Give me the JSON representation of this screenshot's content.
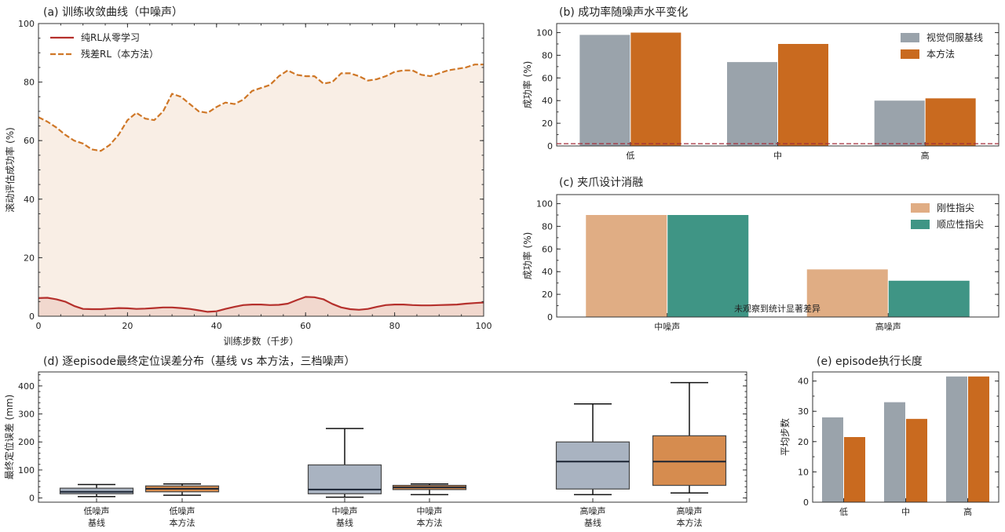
{
  "chart_data": [
    {
      "id": "a",
      "type": "line",
      "title": "(a) 训练收敛曲线（中噪声）",
      "xlabel": "训练步数（千步）",
      "ylabel": "滚动评估成功率 (%)",
      "xlim": [
        0,
        100
      ],
      "ylim": [
        0,
        100
      ],
      "xticks": [
        "0",
        "20",
        "40",
        "60",
        "80",
        "100"
      ],
      "yticks": [
        "0",
        "20",
        "40",
        "60",
        "80",
        "100"
      ],
      "legend_position": "top-left",
      "series": [
        {
          "name": "纯RL从零学习",
          "color": "#b5302c",
          "style": "solid",
          "x": [
            0,
            2,
            4,
            6,
            8,
            10,
            12,
            14,
            16,
            18,
            20,
            22,
            24,
            26,
            28,
            30,
            32,
            34,
            36,
            38,
            40,
            42,
            44,
            46,
            48,
            50,
            52,
            54,
            56,
            58,
            60,
            62,
            64,
            66,
            68,
            70,
            72,
            74,
            76,
            78,
            80,
            82,
            84,
            86,
            88,
            90,
            92,
            94,
            96,
            98,
            100
          ],
          "y": [
            6.2,
            6.3,
            5.8,
            5,
            3.5,
            2.5,
            2.4,
            2.4,
            2.6,
            2.8,
            2.7,
            2.5,
            2.6,
            2.8,
            3,
            3,
            2.8,
            2.5,
            2,
            1.5,
            1.7,
            2.5,
            3.2,
            3.8,
            4,
            4,
            3.8,
            3.9,
            4.3,
            5.5,
            6.6,
            6.5,
            5.8,
            4.2,
            3,
            2.4,
            2.2,
            2.5,
            3.2,
            3.8,
            4,
            4,
            3.8,
            3.7,
            3.7,
            3.8,
            3.9,
            4.0,
            4.3,
            4.5,
            4.7
          ]
        },
        {
          "name": "残差RL（本方法）",
          "color": "#cf7727",
          "style": "dashed",
          "x": [
            0,
            2,
            4,
            6,
            8,
            10,
            12,
            14,
            16,
            18,
            20,
            22,
            24,
            26,
            28,
            30,
            32,
            34,
            36,
            38,
            40,
            42,
            44,
            46,
            48,
            50,
            52,
            54,
            56,
            58,
            60,
            62,
            64,
            66,
            68,
            70,
            72,
            74,
            76,
            78,
            80,
            82,
            84,
            86,
            88,
            90,
            92,
            94,
            96,
            98,
            100
          ],
          "y": [
            68,
            66.5,
            64.5,
            62,
            60,
            59,
            57,
            56.5,
            58.5,
            62,
            67,
            69.5,
            67.5,
            67,
            70,
            76,
            75,
            72.5,
            70,
            69.5,
            71.5,
            73,
            72.5,
            74,
            77,
            78,
            79,
            82,
            84,
            82.5,
            82,
            82,
            79.5,
            80,
            83,
            83,
            82,
            80.5,
            81,
            82,
            83.5,
            84,
            84,
            82.5,
            82,
            83,
            84,
            84.5,
            85,
            86,
            86
          ]
        }
      ]
    },
    {
      "id": "b",
      "type": "bar",
      "title": "(b) 成功率随噪声水平变化",
      "ylabel": "成功率 (%)",
      "categories": [
        "低",
        "中",
        "高"
      ],
      "ylim": [
        0,
        108
      ],
      "yticks": [
        "0",
        "20",
        "40",
        "60",
        "80",
        "100"
      ],
      "reference_line": 2,
      "legend_position": "top-right",
      "series": [
        {
          "name": "视觉伺服基线",
          "color": "#9aa3ab",
          "values": [
            98,
            74,
            40
          ]
        },
        {
          "name": "本方法",
          "color": "#c96a1f",
          "values": [
            100,
            90,
            42
          ]
        }
      ]
    },
    {
      "id": "c",
      "type": "bar",
      "title": "(c) 夹爪设计消融",
      "ylabel": "成功率 (%)",
      "categories": [
        "中噪声",
        "高噪声"
      ],
      "ylim": [
        0,
        108
      ],
      "yticks": [
        "0",
        "20",
        "40",
        "60",
        "80",
        "100"
      ],
      "legend_position": "top-right",
      "annotation": "未观察到统计显著差异",
      "series": [
        {
          "name": "刚性指尖",
          "color": "#e0ad84",
          "values": [
            90,
            42
          ]
        },
        {
          "name": "顺应性指尖",
          "color": "#3f9585",
          "values": [
            90,
            32
          ]
        }
      ]
    },
    {
      "id": "d",
      "type": "box",
      "title": "(d) 逐episode最终定位误差分布（基线 vs 本方法，三档噪声）",
      "ylabel": "最终定位误差 (mm)",
      "ylim": [
        -15,
        450
      ],
      "yticks": [
        "0",
        "100",
        "200",
        "300",
        "400"
      ],
      "boxes": [
        {
          "label": [
            "低噪声",
            "基线"
          ],
          "color": "#a9b3c1",
          "whislo": 5,
          "q1": 15,
          "med": 22,
          "q3": 35,
          "whishi": 48
        },
        {
          "label": [
            "低噪声",
            "本方法"
          ],
          "color": "#d68c4f",
          "whislo": 10,
          "q1": 22,
          "med": 33,
          "q3": 43,
          "whishi": 50
        },
        {
          "label": [
            "中噪声",
            "基线"
          ],
          "color": "#a9b3c1",
          "whislo": 3,
          "q1": 15,
          "med": 30,
          "q3": 118,
          "whishi": 248
        },
        {
          "label": [
            "中噪声",
            "本方法"
          ],
          "color": "#d68c4f",
          "whislo": 12,
          "q1": 30,
          "med": 38,
          "q3": 45,
          "whishi": 50
        },
        {
          "label": [
            "高噪声",
            "基线"
          ],
          "color": "#a9b3c1",
          "whislo": 12,
          "q1": 32,
          "med": 130,
          "q3": 200,
          "whishi": 336
        },
        {
          "label": [
            "高噪声",
            "本方法"
          ],
          "color": "#d68c4f",
          "whislo": 18,
          "q1": 45,
          "med": 130,
          "q3": 222,
          "whishi": 412
        }
      ]
    },
    {
      "id": "e",
      "type": "bar",
      "title": "(e) episode执行长度",
      "ylabel": "平均步数",
      "categories": [
        "低",
        "中",
        "高"
      ],
      "ylim": [
        0,
        43
      ],
      "yticks": [
        "0",
        "10",
        "20",
        "30",
        "40"
      ],
      "series": [
        {
          "name": "视觉伺服基线",
          "color": "#9aa3ab",
          "values": [
            28,
            33,
            41.5
          ]
        },
        {
          "name": "本方法",
          "color": "#c96a1f",
          "values": [
            21.5,
            27.5,
            41.5
          ]
        }
      ]
    }
  ]
}
